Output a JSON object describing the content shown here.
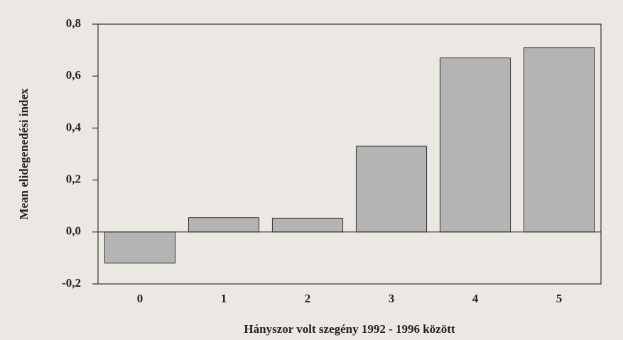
{
  "chart_data": {
    "type": "bar",
    "xlabel": "Hányszor volt szegény 1992 - 1996 között",
    "ylabel": "Mean elidegenedési index",
    "categories": [
      "0",
      "1",
      "2",
      "3",
      "4",
      "5"
    ],
    "values": [
      -0.12,
      0.055,
      0.053,
      0.33,
      0.67,
      0.71
    ],
    "color": "#b4b4b4",
    "ylim": [
      -0.2,
      0.8
    ],
    "yticks": [
      {
        "value": -0.2,
        "label": "-0,2"
      },
      {
        "value": 0,
        "label": "0,0"
      },
      {
        "value": 0.2,
        "label": "0,2"
      },
      {
        "value": 0.4,
        "label": "0,4"
      },
      {
        "value": 0.6,
        "label": "0,6"
      },
      {
        "value": 0.8,
        "label": "0,8"
      }
    ]
  }
}
